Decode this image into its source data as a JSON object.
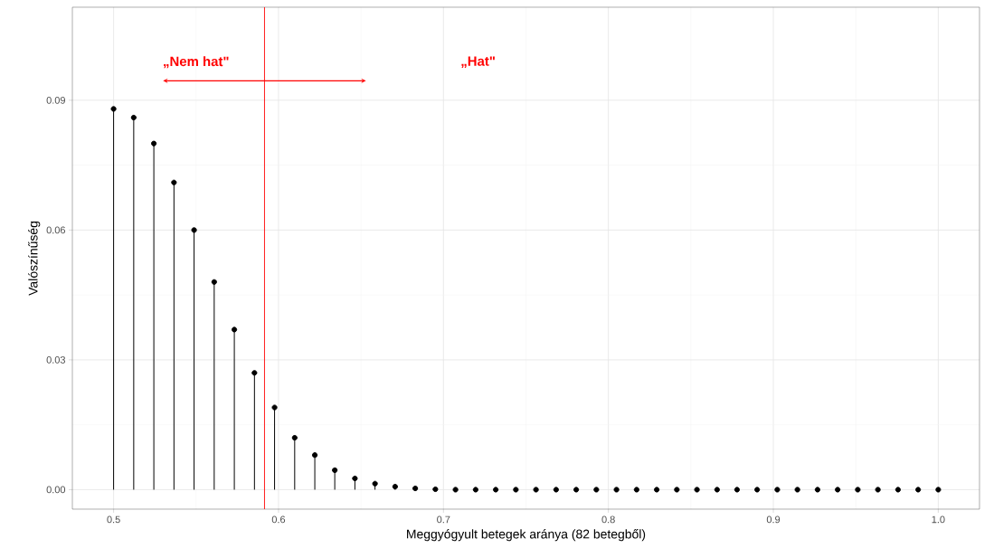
{
  "chart_data": {
    "type": "lollipop",
    "xlabel": "Meggyógyult betegek aránya (82 betegből)",
    "ylabel": "Valószínűség",
    "x": [
      0.5,
      0.5122,
      0.5244,
      0.5366,
      0.5488,
      0.561,
      0.5732,
      0.5854,
      0.5976,
      0.6098,
      0.622,
      0.6341,
      0.6463,
      0.6585,
      0.6707,
      0.6829,
      0.6951,
      0.7073,
      0.7195,
      0.7317,
      0.7439,
      0.7561,
      0.7683,
      0.7805,
      0.7927,
      0.8049,
      0.8171,
      0.8293,
      0.8415,
      0.8537,
      0.8659,
      0.878,
      0.8902,
      0.9024,
      0.9146,
      0.9268,
      0.939,
      0.9512,
      0.9634,
      0.9756,
      0.9878,
      1.0
    ],
    "values": [
      0.088,
      0.086,
      0.08,
      0.071,
      0.06,
      0.048,
      0.037,
      0.027,
      0.019,
      0.012,
      0.008,
      0.0045,
      0.0026,
      0.0014,
      0.0007,
      0.0003,
      0.0001,
      0,
      0,
      0,
      0,
      0,
      0,
      0,
      0,
      0,
      0,
      0,
      0,
      0,
      0,
      0,
      0,
      0,
      0,
      0,
      0,
      0,
      0,
      0,
      0,
      0
    ],
    "color": "#000000",
    "marker": "circle",
    "grid": true,
    "xlim": [
      0.475,
      1.025
    ],
    "ylim": [
      -0.0045,
      0.1115
    ],
    "xticks": [
      0.5,
      0.6,
      0.7,
      0.8,
      0.9,
      {
        "value": 1.0,
        "label": "1.0"
      }
    ],
    "yticks": [
      {
        "value": 0,
        "label": "0.00"
      },
      {
        "value": 0.03,
        "label": "0.03"
      },
      {
        "value": 0.06,
        "label": "0.06"
      },
      {
        "value": 0.09,
        "label": "0.09"
      }
    ],
    "ref_lines": [
      {
        "axis": "x",
        "value": 0.5915,
        "color": "#ff0000"
      }
    ],
    "annotations": [
      "„Nem hat\"",
      "„Hat\""
    ]
  }
}
